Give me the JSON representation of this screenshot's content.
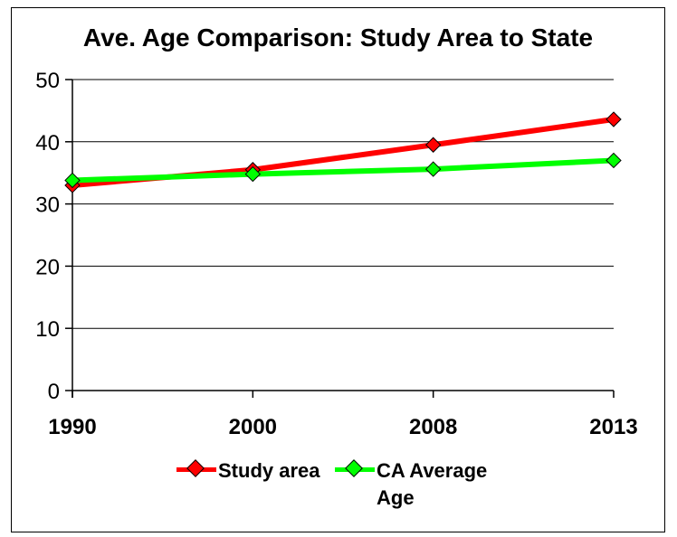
{
  "chart_data": {
    "type": "line",
    "title": "Ave. Age Comparison: Study Area to State",
    "categories": [
      "1990",
      "2000",
      "2008",
      "2013"
    ],
    "series": [
      {
        "name": "Study area",
        "values": [
          33,
          35.5,
          39.5,
          43.6
        ],
        "color": "#ff0000"
      },
      {
        "name": "CA Average Age",
        "values": [
          33.8,
          34.8,
          35.6,
          37
        ],
        "color": "#00ff00"
      }
    ],
    "ylim": [
      0,
      50
    ],
    "yticks": [
      0,
      10,
      20,
      30,
      40,
      50
    ],
    "grid": true,
    "legend": "bottom",
    "marker": "diamond"
  }
}
